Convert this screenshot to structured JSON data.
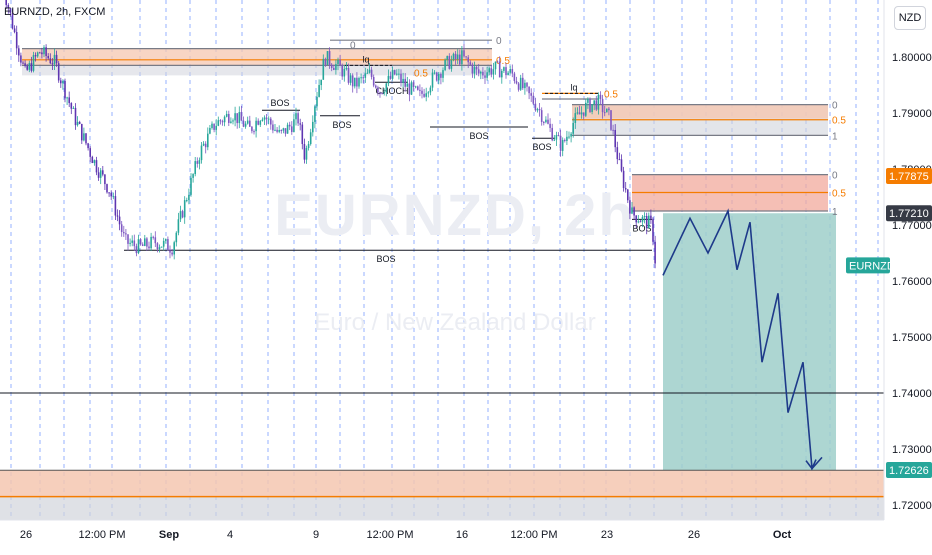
{
  "header": {
    "title": "EURNZD, 2h, FXCM"
  },
  "currency": "NZD",
  "watermark": {
    "symbol": "EURNZD, 2h",
    "description": "Euro / New Zealand Dollar"
  },
  "chart_data": {
    "type": "candlestick",
    "symbol": "EURNZD",
    "ylim": [
      1.715,
      1.8175
    ],
    "y_ticks": [
      "1.80000",
      "1.79000",
      "1.78000",
      "1.77000",
      "1.76000",
      "1.75000",
      "1.74000",
      "1.73000",
      "1.72000"
    ],
    "x_ticks": [
      "26",
      "12:00 PM",
      "Sep",
      "4",
      "9",
      "12:00 PM",
      "16",
      "12:00 PM",
      "23",
      "26",
      "Oct"
    ],
    "price_path": [
      [
        0,
        1.815
      ],
      [
        15,
        1.804
      ],
      [
        25,
        1.797
      ],
      [
        40,
        1.801
      ],
      [
        55,
        1.799
      ],
      [
        75,
        1.789
      ],
      [
        95,
        1.781
      ],
      [
        110,
        1.776
      ],
      [
        125,
        1.767
      ],
      [
        140,
        1.766
      ],
      [
        155,
        1.767
      ],
      [
        172,
        1.766
      ],
      [
        185,
        1.774
      ],
      [
        200,
        1.783
      ],
      [
        215,
        1.788
      ],
      [
        232,
        1.79
      ],
      [
        250,
        1.787
      ],
      [
        262,
        1.79
      ],
      [
        280,
        1.786
      ],
      [
        298,
        1.789
      ],
      [
        305,
        1.782
      ],
      [
        315,
        1.792
      ],
      [
        325,
        1.8
      ],
      [
        340,
        1.798
      ],
      [
        355,
        1.795
      ],
      [
        370,
        1.797
      ],
      [
        380,
        1.794
      ],
      [
        395,
        1.797
      ],
      [
        405,
        1.795
      ],
      [
        420,
        1.793
      ],
      [
        432,
        1.796
      ],
      [
        448,
        1.799
      ],
      [
        462,
        1.8
      ],
      [
        478,
        1.797
      ],
      [
        495,
        1.798
      ],
      [
        512,
        1.797
      ],
      [
        525,
        1.794
      ],
      [
        538,
        1.791
      ],
      [
        550,
        1.787
      ],
      [
        562,
        1.784
      ],
      [
        572,
        1.788
      ],
      [
        585,
        1.791
      ],
      [
        598,
        1.792
      ],
      [
        610,
        1.789
      ],
      [
        620,
        1.78
      ],
      [
        632,
        1.772
      ],
      [
        642,
        1.771
      ],
      [
        652,
        1.77
      ],
      [
        656,
        1.762
      ]
    ],
    "horizontal_levels": [
      {
        "price": 1.74
      }
    ],
    "annotations": {
      "bos_labels": [
        "BOS",
        "BOS",
        "BOS",
        "BOS",
        "BOS",
        "BOS",
        "BOS"
      ],
      "choch_label": "CHOCH",
      "liquidity_labels": [
        "lq",
        "lq"
      ],
      "fib_levels": [
        "0",
        "0.5",
        "1",
        "0",
        "0.5",
        "1",
        "0.5",
        "0.5",
        "0.5",
        "0",
        "0"
      ]
    },
    "zones": [
      {
        "type": "supply",
        "top": 1.8015,
        "bottom": 1.7985
      },
      {
        "type": "supply",
        "top": 1.7915,
        "bottom": 1.786
      },
      {
        "type": "supply",
        "top": 1.779,
        "bottom": 1.7725
      },
      {
        "type": "demand",
        "top": 1.7262,
        "bottom": 1.717
      }
    ],
    "projection_path": [
      [
        663,
        1.761
      ],
      [
        690,
        1.7712
      ],
      [
        708,
        1.765
      ],
      [
        728,
        1.7725
      ],
      [
        737,
        1.762
      ],
      [
        750,
        1.7705
      ],
      [
        762,
        1.7455
      ],
      [
        778,
        1.7578
      ],
      [
        788,
        1.7365
      ],
      [
        803,
        1.7455
      ],
      [
        812,
        1.7265
      ],
      [
        822,
        1.7285
      ]
    ],
    "price_tags": [
      {
        "label": "1.77875",
        "price": 1.77875,
        "color": "#f57c00"
      },
      {
        "label": "1.77210",
        "price": 1.7721,
        "color": "#363a45"
      },
      {
        "label": "EURNZD",
        "price": 1.7628,
        "color": "#26a69a"
      },
      {
        "label": "1.72626",
        "price": 1.72626,
        "color": "#26a69a"
      }
    ]
  }
}
